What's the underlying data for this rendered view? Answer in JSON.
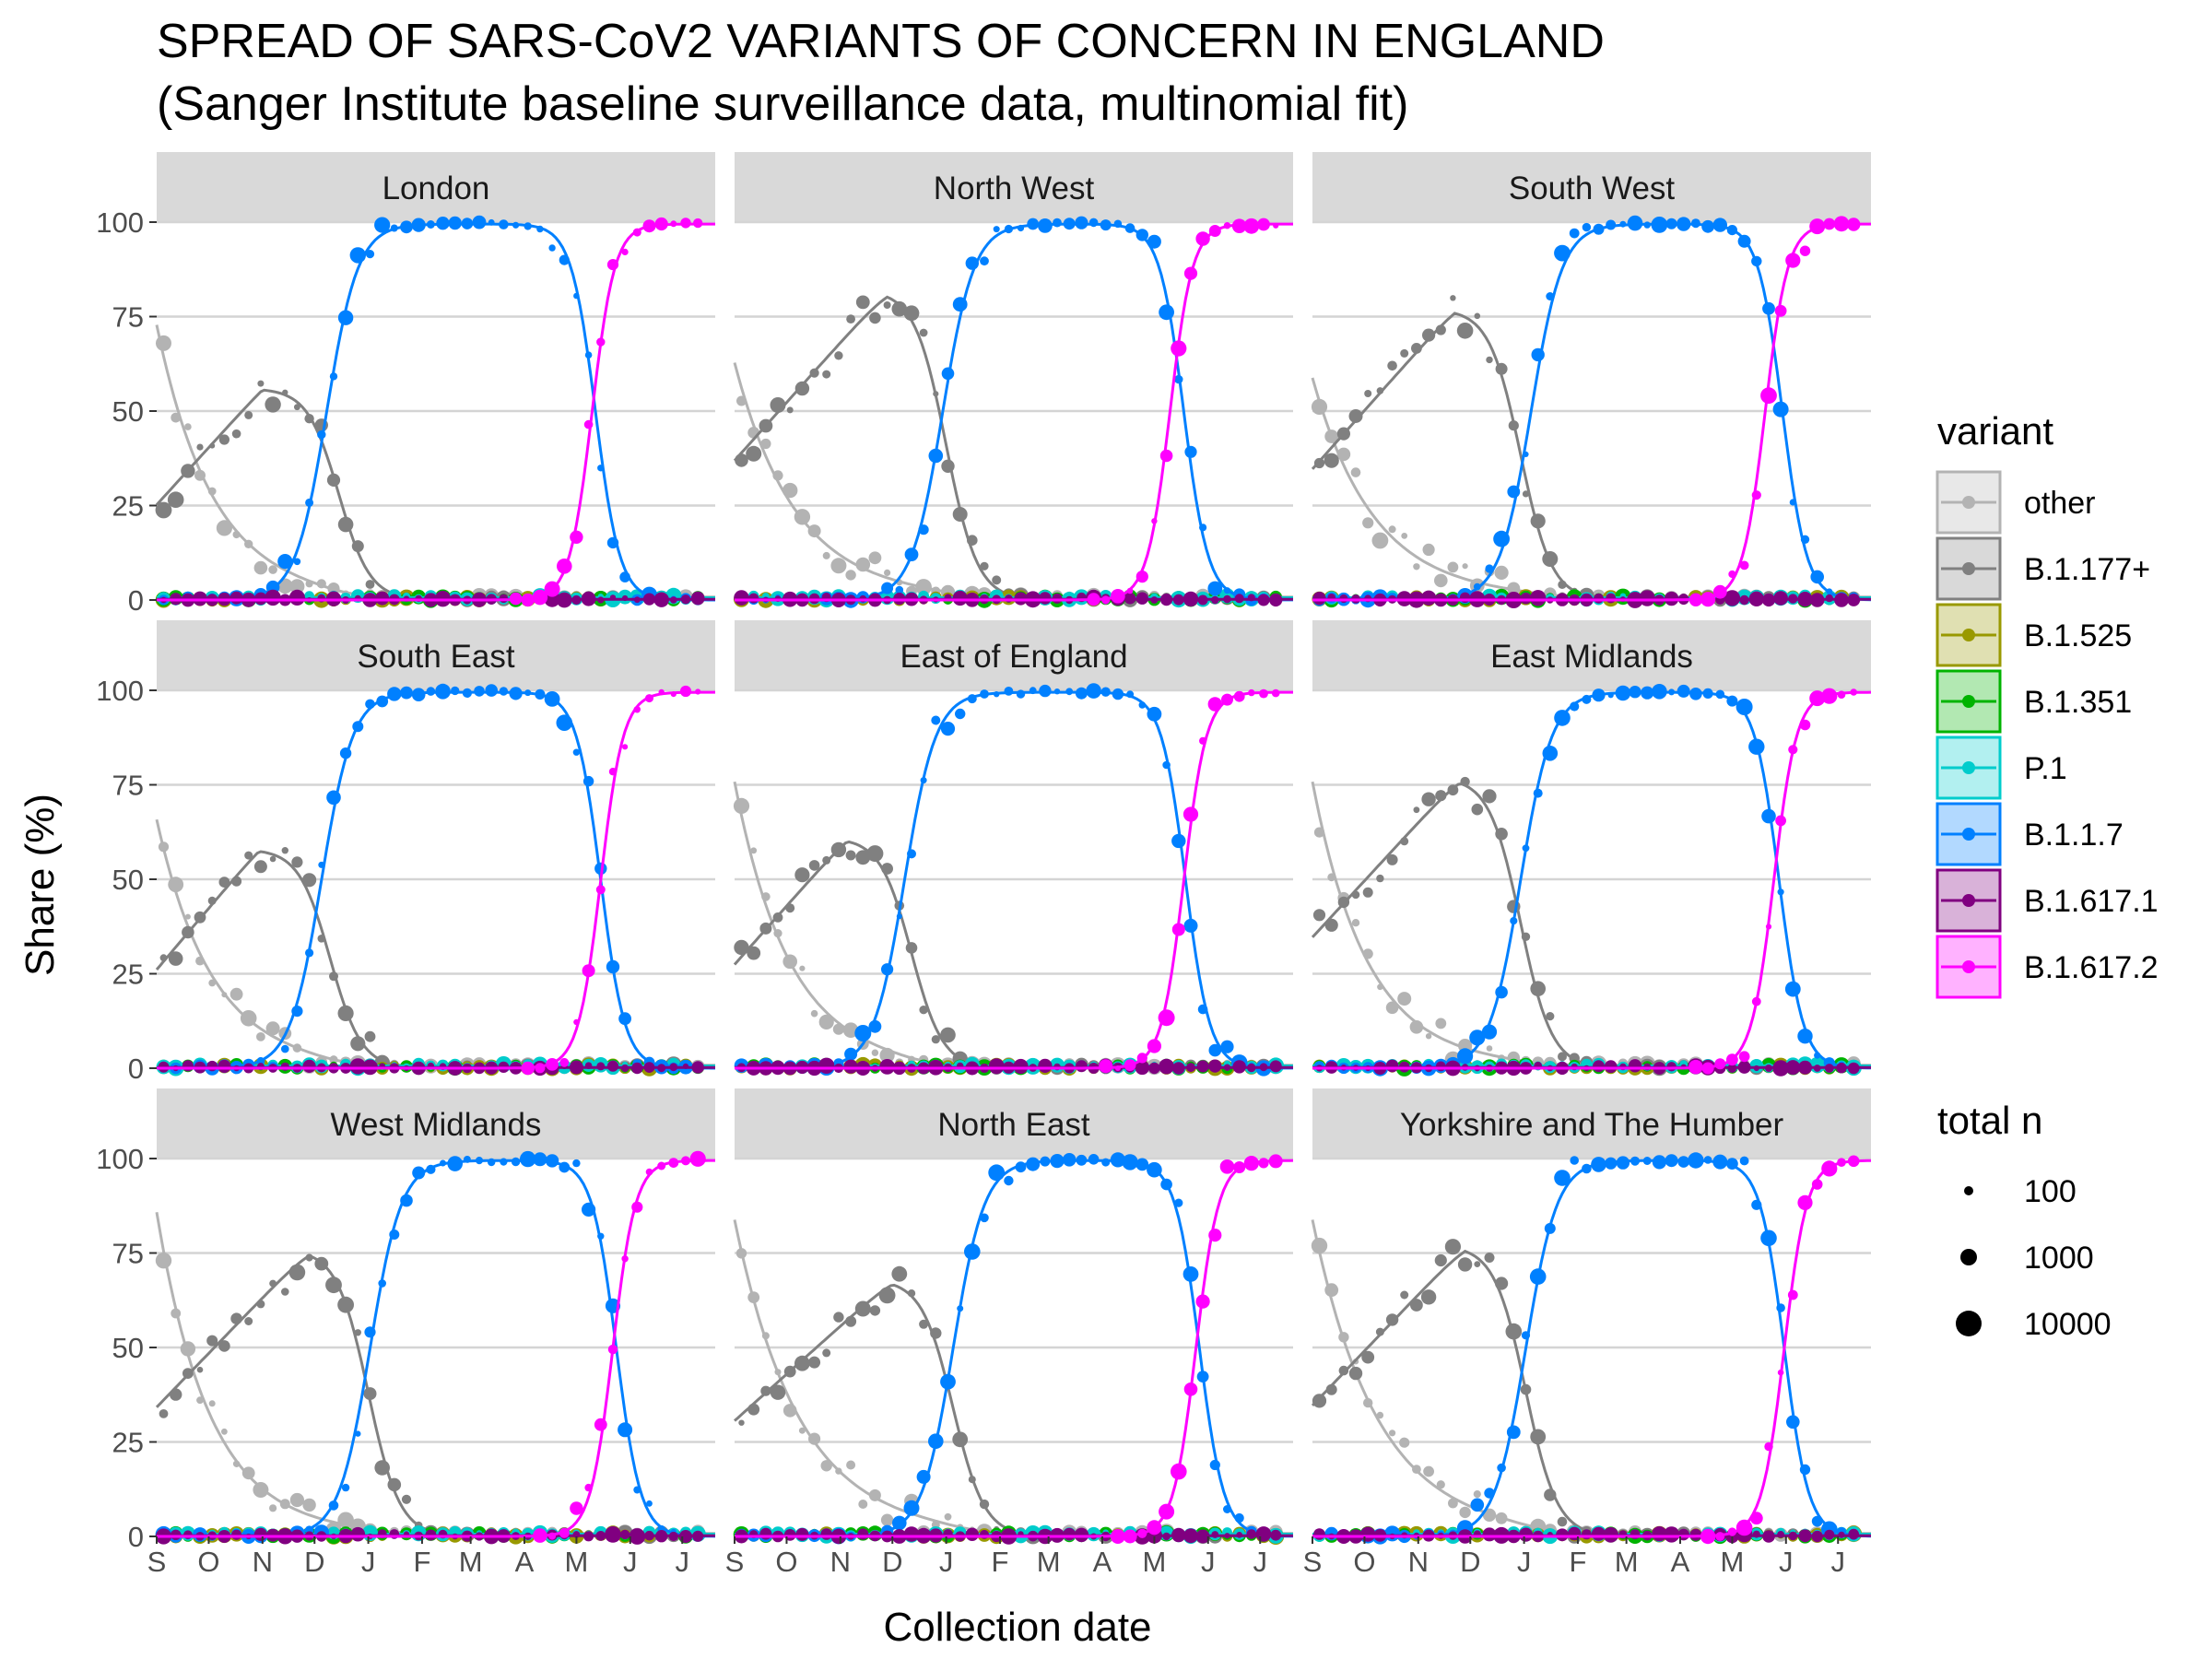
{
  "chart_data": {
    "type": "scatter",
    "title": "SPREAD OF SARS-CoV2 VARIANTS OF CONCERN IN ENGLAND",
    "subtitle": "(Sanger Institute baseline surveillance data, multinomial fit)",
    "xlabel": "Collection date",
    "ylabel": "Share (%)",
    "x_ticks": [
      "S",
      "O",
      "N",
      "D",
      "J",
      "F",
      "M",
      "A",
      "M",
      "J",
      "J"
    ],
    "x_tick_dates": [
      "2020-09-01",
      "2020-10-01",
      "2020-11-01",
      "2020-12-01",
      "2021-01-01",
      "2021-02-01",
      "2021-03-01",
      "2021-04-01",
      "2021-05-01",
      "2021-06-01",
      "2021-07-01"
    ],
    "xlim": [
      "2020-09-01",
      "2021-07-20"
    ],
    "y_ticks": [
      "0",
      "25",
      "50",
      "75",
      "100"
    ],
    "ylim": [
      0,
      100
    ],
    "grid": "horizontal",
    "legend_position": "right",
    "legend": {
      "variant_title": "variant",
      "size_title": "total n",
      "size_labels": [
        "100",
        "1000",
        "10000"
      ]
    },
    "variants": [
      {
        "name": "other",
        "color": "#B3B3B3"
      },
      {
        "name": "B.1.177+",
        "color": "#808080"
      },
      {
        "name": "B.1.525",
        "color": "#999900"
      },
      {
        "name": "B.1.351",
        "color": "#00B300"
      },
      {
        "name": "P.1",
        "color": "#00CCCC"
      },
      {
        "name": "B.1.1.7",
        "color": "#0080FF"
      },
      {
        "name": "B.1.617.1",
        "color": "#800080"
      },
      {
        "name": "B.1.617.2",
        "color": "#FF00FF"
      }
    ],
    "panels": [
      {
        "region": "London",
        "other": {
          "start": 72,
          "decay_date": "2020-11-10",
          "decay_width": 22
        },
        "b1177": {
          "peak": 56,
          "peak_date": "2020-11-01",
          "decline_mid": "2020-12-15"
        },
        "b117_mid": "2020-12-08",
        "b117_decline_mid": "2021-05-12",
        "b16172_mid": "2021-05-10"
      },
      {
        "region": "North West",
        "other": {
          "start": 62,
          "decay_date": "2020-10-20",
          "decay_width": 28
        },
        "b1177": {
          "peak": 82,
          "peak_date": "2020-11-28",
          "decline_mid": "2021-01-01"
        },
        "b117_mid": "2020-12-30",
        "b117_decline_mid": "2021-05-18",
        "b16172_mid": "2021-05-10"
      },
      {
        "region": "South West",
        "other": {
          "start": 58,
          "decay_date": "2020-10-20",
          "decay_width": 28
        },
        "b1177": {
          "peak": 77,
          "peak_date": "2020-11-22",
          "decline_mid": "2020-12-30"
        },
        "b117_mid": "2021-01-05",
        "b117_decline_mid": "2021-05-30",
        "b16172_mid": "2021-05-20"
      },
      {
        "region": "South East",
        "other": {
          "start": 65,
          "decay_date": "2020-10-15",
          "decay_width": 25
        },
        "b1177": {
          "peak": 58,
          "peak_date": "2020-10-30",
          "decline_mid": "2020-12-10"
        },
        "b117_mid": "2020-12-05",
        "b117_decline_mid": "2021-05-15",
        "b16172_mid": "2021-05-15"
      },
      {
        "region": "East of England",
        "other": {
          "start": 75,
          "decay_date": "2020-10-15",
          "decay_width": 25
        },
        "b1177": {
          "peak": 61,
          "peak_date": "2020-11-05",
          "decline_mid": "2020-12-12"
        },
        "b117_mid": "2020-12-08",
        "b117_decline_mid": "2021-05-19",
        "b16172_mid": "2021-05-18"
      },
      {
        "region": "East Midlands",
        "other": {
          "start": 75,
          "decay_date": "2020-10-15",
          "decay_width": 25
        },
        "b1177": {
          "peak": 77,
          "peak_date": "2020-11-25",
          "decline_mid": "2020-12-30"
        },
        "b117_mid": "2020-12-30",
        "b117_decline_mid": "2021-05-28",
        "b16172_mid": "2021-05-25"
      },
      {
        "region": "West Midlands",
        "other": {
          "start": 85,
          "decay_date": "2020-10-10",
          "decay_width": 25
        },
        "b1177": {
          "peak": 76,
          "peak_date": "2020-11-28",
          "decline_mid": "2021-01-01"
        },
        "b117_mid": "2021-01-02",
        "b117_decline_mid": "2021-05-24",
        "b16172_mid": "2021-05-22"
      },
      {
        "region": "North East",
        "other": {
          "start": 83,
          "decay_date": "2020-10-20",
          "decay_width": 30
        },
        "b1177": {
          "peak": 68,
          "peak_date": "2020-12-01",
          "decline_mid": "2021-01-05"
        },
        "b117_mid": "2021-01-05",
        "b117_decline_mid": "2021-05-27",
        "b16172_mid": "2021-05-25"
      },
      {
        "region": "Yorkshire and The Humber",
        "other": {
          "start": 83,
          "decay_date": "2020-10-20",
          "decay_width": 30
        },
        "b1177": {
          "peak": 77,
          "peak_date": "2020-11-28",
          "decline_mid": "2021-01-02"
        },
        "b117_mid": "2021-01-02",
        "b117_decline_mid": "2021-05-31",
        "b16172_mid": "2021-05-31"
      }
    ]
  }
}
